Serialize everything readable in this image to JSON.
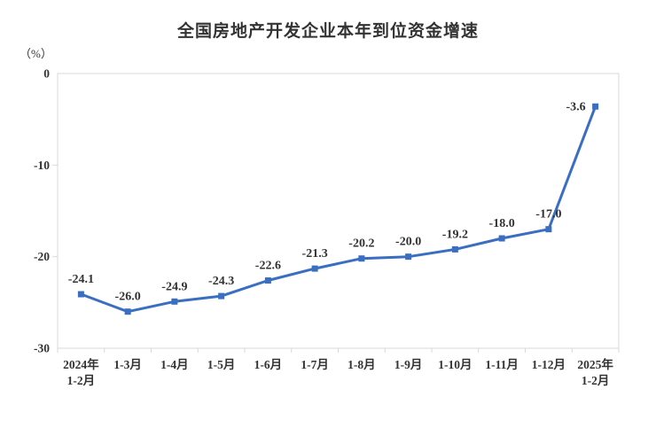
{
  "chart_data": {
    "type": "line",
    "title": "全国房地产开发企业本年到位资金增速",
    "unit_label": "（%）",
    "categories": [
      [
        "2024年",
        "1-2月"
      ],
      [
        "1-3月"
      ],
      [
        "1-4月"
      ],
      [
        "1-5月"
      ],
      [
        "1-6月"
      ],
      [
        "1-7月"
      ],
      [
        "1-8月"
      ],
      [
        "1-9月"
      ],
      [
        "1-10月"
      ],
      [
        "1-11月"
      ],
      [
        "1-12月"
      ],
      [
        "2025年",
        "1-2月"
      ]
    ],
    "values": [
      -24.1,
      -26.0,
      -24.9,
      -24.3,
      -22.6,
      -21.3,
      -20.2,
      -20.0,
      -19.2,
      -18.0,
      -17.0,
      -3.6
    ],
    "point_labels": [
      "-24.1",
      "-26.0",
      "-24.9",
      "-24.3",
      "-22.6",
      "-21.3",
      "-20.2",
      "-20.0",
      "-19.2",
      "-18.0",
      "-17.0",
      "-3.6"
    ],
    "y_ticks": [
      0,
      -10,
      -20,
      -30
    ],
    "ylim": [
      -30,
      0
    ],
    "grid": false,
    "legend": "none",
    "marker": "square",
    "colors": {
      "line": "#3a6ec1",
      "marker": "#3a6ec1",
      "axis_border": "#d9d9d9",
      "text": "#333333"
    }
  }
}
